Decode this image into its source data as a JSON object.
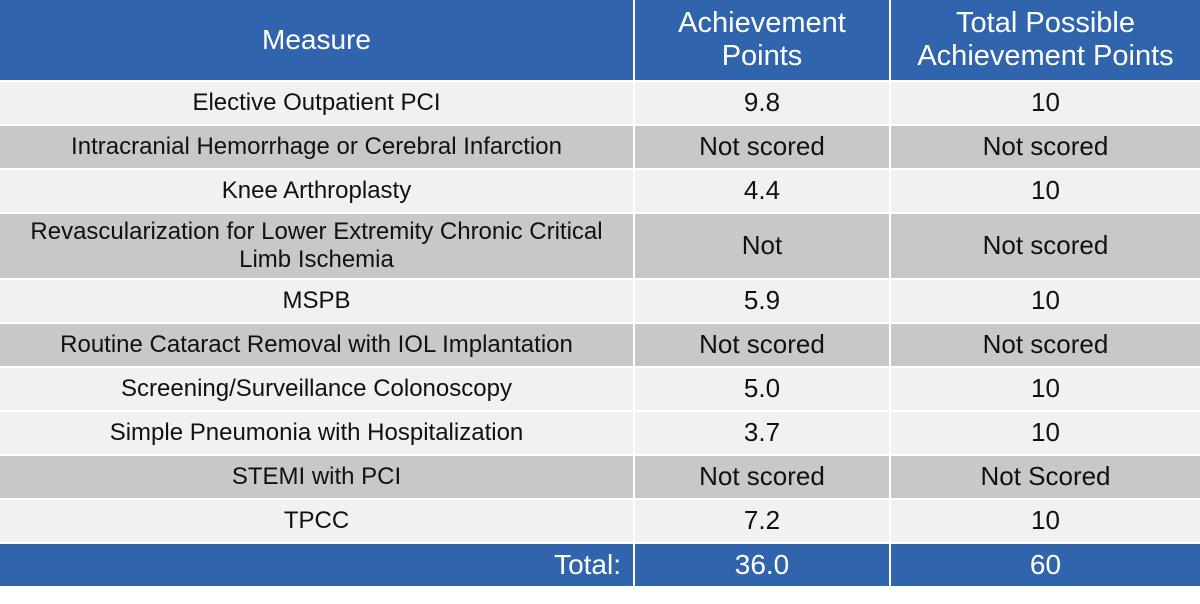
{
  "header": {
    "measure": "Measure",
    "achievement": "Achievement Points",
    "total_possible": "Total Possible Achievement Points"
  },
  "rows": [
    {
      "measure": "Elective Outpatient PCI",
      "achievement": "9.8",
      "total_possible": "10"
    },
    {
      "measure": "Intracranial Hemorrhage or Cerebral Infarction",
      "achievement": "Not scored",
      "total_possible": "Not scored"
    },
    {
      "measure": "Knee Arthroplasty",
      "achievement": "4.4",
      "total_possible": "10"
    },
    {
      "measure": "Revascularization for Lower Extremity Chronic Critical Limb Ischemia",
      "achievement": "Not",
      "total_possible": "Not scored"
    },
    {
      "measure": "MSPB",
      "achievement": "5.9",
      "total_possible": "10"
    },
    {
      "measure": "Routine Cataract Removal with IOL Implantation",
      "achievement": "Not scored",
      "total_possible": "Not scored"
    },
    {
      "measure": "Screening/Surveillance Colonoscopy",
      "achievement": "5.0",
      "total_possible": "10"
    },
    {
      "measure": "Simple Pneumonia with Hospitalization",
      "achievement": "3.7",
      "total_possible": "10"
    },
    {
      "measure": "STEMI with PCI",
      "achievement": "Not scored",
      "total_possible": "Not Scored"
    },
    {
      "measure": "TPCC",
      "achievement": "7.2",
      "total_possible": "10"
    }
  ],
  "footer": {
    "label": "Total:",
    "achievement": "36.0",
    "total_possible": "60"
  },
  "colors": {
    "header_bg": "#3065ad",
    "row_light": "#f1f1f1",
    "row_dark": "#c8c8c8"
  }
}
